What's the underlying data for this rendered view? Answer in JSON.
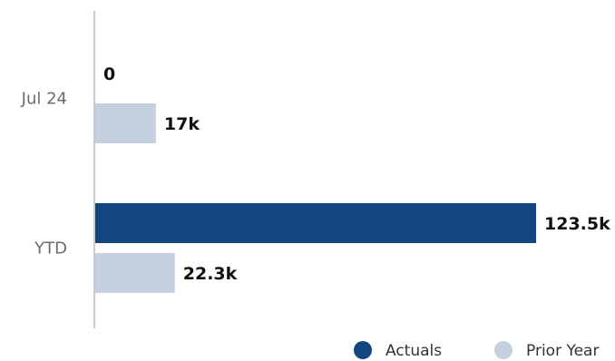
{
  "chart_data": {
    "type": "bar",
    "orientation": "horizontal",
    "categories": [
      "Jul 24",
      "YTD"
    ],
    "series": [
      {
        "name": "Actuals",
        "color": "#12467f",
        "values": [
          0,
          123500
        ],
        "labels": [
          "0",
          "123.5k"
        ]
      },
      {
        "name": "Prior Year",
        "color": "#c5d1e0",
        "values": [
          17000,
          22300
        ],
        "labels": [
          "17k",
          "22.3k"
        ]
      }
    ],
    "title": "",
    "xlabel": "",
    "ylabel": "",
    "xlim": [
      0,
      123500
    ],
    "grid": false,
    "legend": "bottom-right",
    "axis_color": "#c9c9c9"
  }
}
